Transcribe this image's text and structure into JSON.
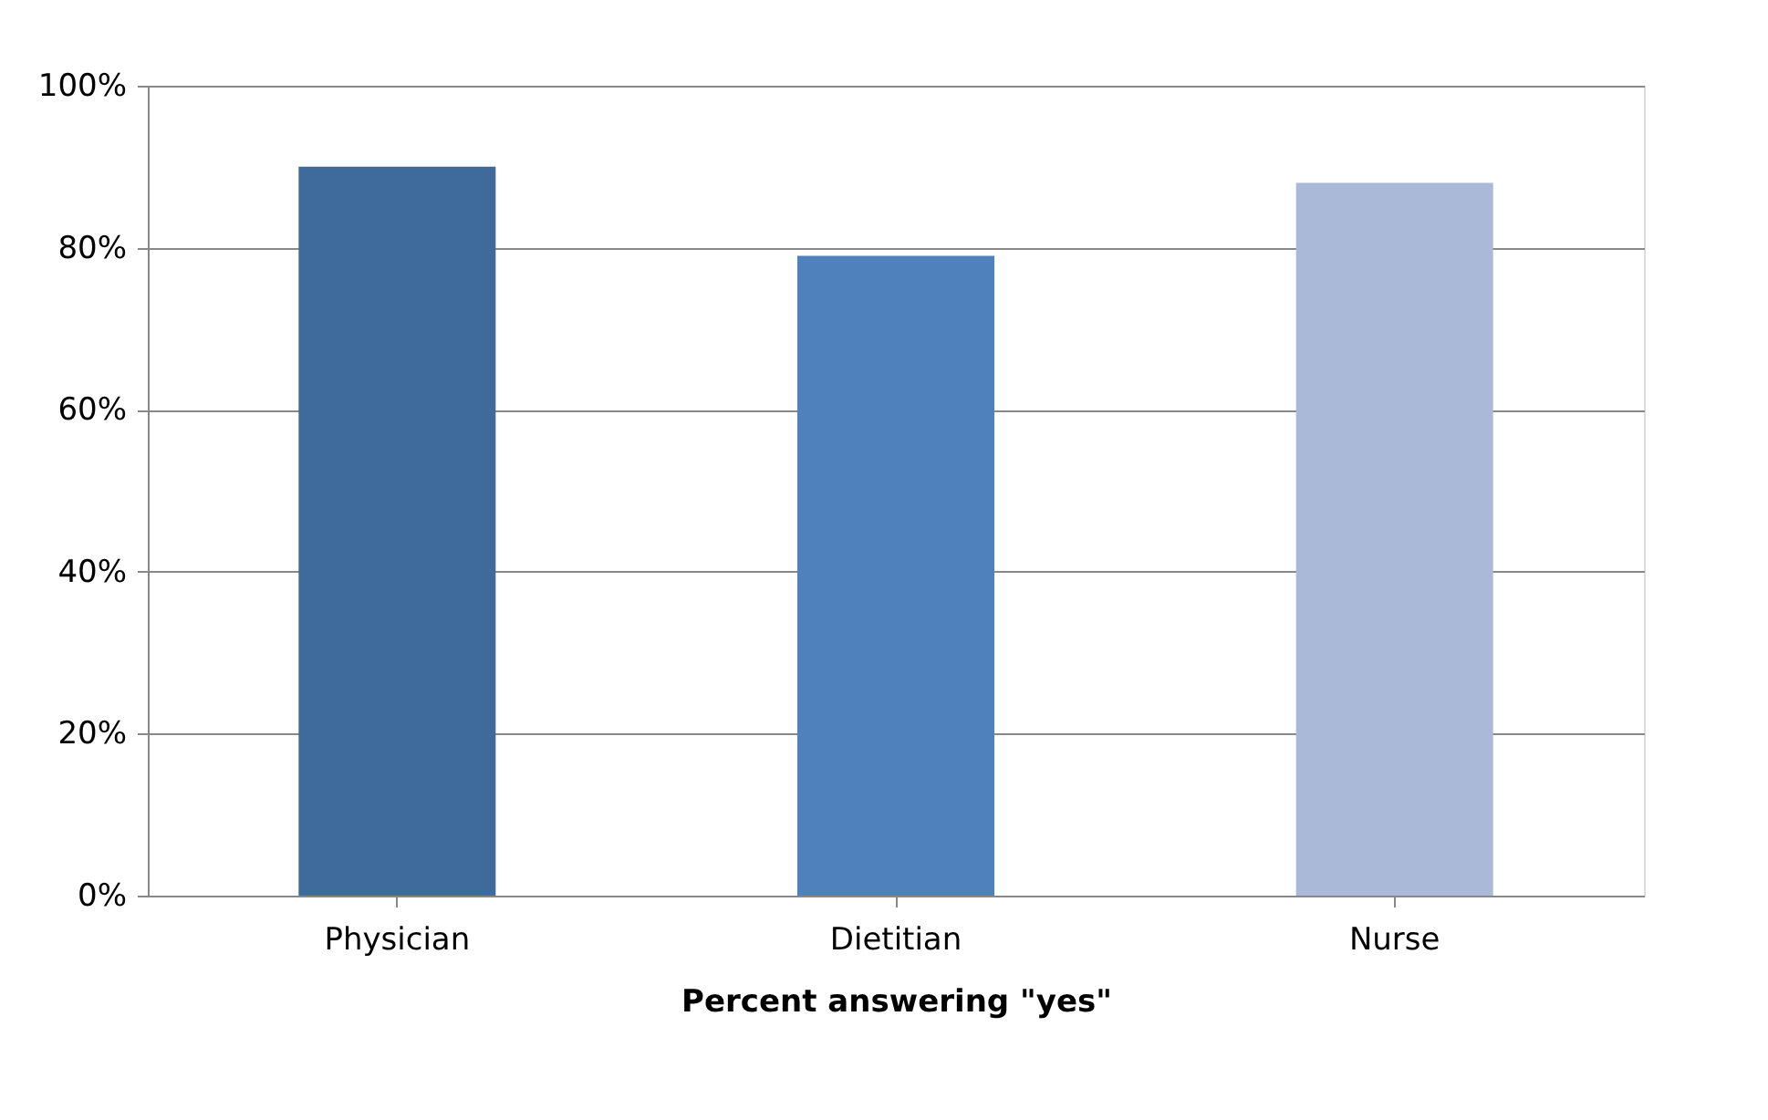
{
  "chart_data": {
    "type": "bar",
    "xlabel": "Percent answering \"yes\"",
    "categories": [
      "Physician",
      "Dietitian",
      "Nurse"
    ],
    "values": [
      90,
      79,
      88
    ],
    "colors": [
      "#3f6b9c",
      "#4f81bd",
      "#a9b9d7"
    ],
    "ylim": [
      0,
      100
    ],
    "yticks": [
      {
        "value": 0,
        "label": "0%"
      },
      {
        "value": 20,
        "label": "20%"
      },
      {
        "value": 40,
        "label": "40%"
      },
      {
        "value": 60,
        "label": "60%"
      },
      {
        "value": 80,
        "label": "80%"
      },
      {
        "value": 100,
        "label": "100%"
      }
    ],
    "grid": "y"
  }
}
